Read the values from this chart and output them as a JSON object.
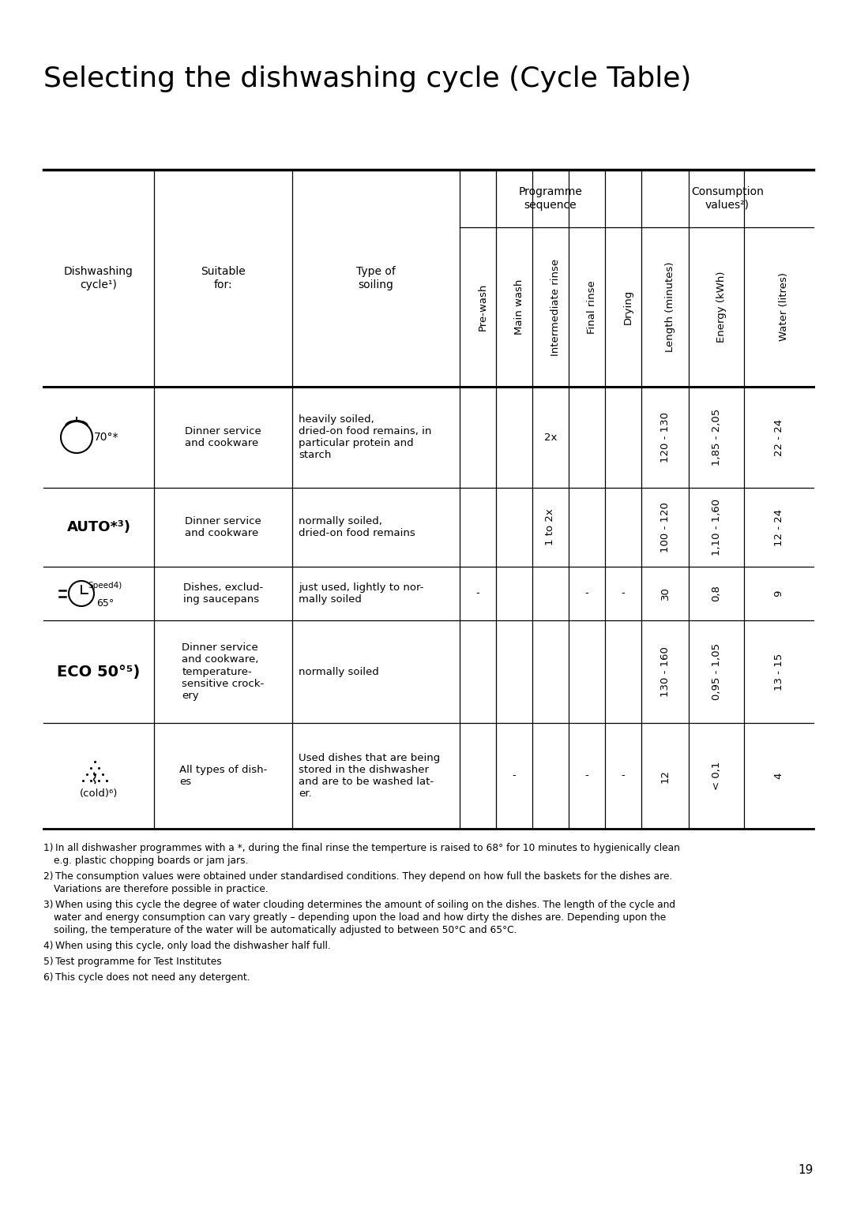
{
  "title": "Selecting the dishwashing cycle (Cycle Table)",
  "page_number": "19",
  "bg": "#ffffff",
  "rotated_labels": [
    "Pre-wash",
    "Main wash",
    "Intermediate rinse",
    "Final rinse",
    "Drying",
    "Length (minutes)",
    "Energy (kWh)",
    "Water (litres)"
  ],
  "fixed_col_headers": [
    "Dishwashing\ncycle¹)",
    "Suitable\nfor:",
    "Type of\nsoiling"
  ],
  "rows": [
    {
      "id": "pot70",
      "suitable": "Dinner service\nand cookware",
      "soiling": "heavily soiled,\ndried-on food remains, in\nparticular protein and\nstarch",
      "prewash": "",
      "mainwash": "",
      "intermediate": "2x",
      "finalrinse": "",
      "drying": "",
      "length": "120 - 130",
      "energy": "1,85 - 2,05",
      "water": "22 - 24"
    },
    {
      "id": "auto",
      "suitable": "Dinner service\nand cookware",
      "soiling": "normally soiled,\ndried-on food remains",
      "prewash": "",
      "mainwash": "",
      "intermediate": "1 to 2x",
      "finalrinse": "",
      "drying": "",
      "length": "100 - 120",
      "energy": "1,10 - 1,60",
      "water": "12 - 24"
    },
    {
      "id": "speed65",
      "suitable": "Dishes, exclud-\ning saucepans",
      "soiling": "just used, lightly to nor-\nmally soiled",
      "prewash": "-",
      "mainwash": "",
      "intermediate": "",
      "finalrinse": "-",
      "drying": "-",
      "length": "30",
      "energy": "0,8",
      "water": "9"
    },
    {
      "id": "eco50",
      "suitable": "Dinner service\nand cookware,\ntemperature-\nsensitive crock-\nery",
      "soiling": "normally soiled",
      "prewash": "",
      "mainwash": "",
      "intermediate": "",
      "finalrinse": "",
      "drying": "",
      "length": "130 - 160",
      "energy": "0,95 - 1,05",
      "water": "13 - 15"
    },
    {
      "id": "cold",
      "suitable": "All types of dish-\nes",
      "soiling": "Used dishes that are being\nstored in the dishwasher\nand are to be washed lat-\ner.",
      "prewash": "",
      "mainwash": "-",
      "intermediate": "",
      "finalrinse": "-",
      "drying": "-",
      "length": "12",
      "energy": "< 0,1",
      "water": "4"
    }
  ],
  "footnotes": [
    [
      "1)",
      "In all dishwasher programmes with a *, during the final rinse the temperture is raised to 68° for 10 minutes to hygienically clean\ne.g. plastic chopping boards or jam jars."
    ],
    [
      "2)",
      "The consumption values were obtained under standardised conditions. They depend on how full the baskets for the dishes are.\nVariations are therefore possible in practice."
    ],
    [
      "3)",
      "When using this cycle the degree of water clouding determines the amount of soiling on the dishes. The length of the cycle and\nwater and energy consumption can vary greatly – depending upon the load and how dirty the dishes are. Depending upon the\nsoiling, the temperature of the water will be automatically adjusted to between 50°C and 65°C."
    ],
    [
      "4)",
      "When using this cycle, only load the dishwasher half full."
    ],
    [
      "5)",
      "Test programme for Test Institutes"
    ],
    [
      "6)",
      "This cycle does not need any detergent."
    ]
  ]
}
